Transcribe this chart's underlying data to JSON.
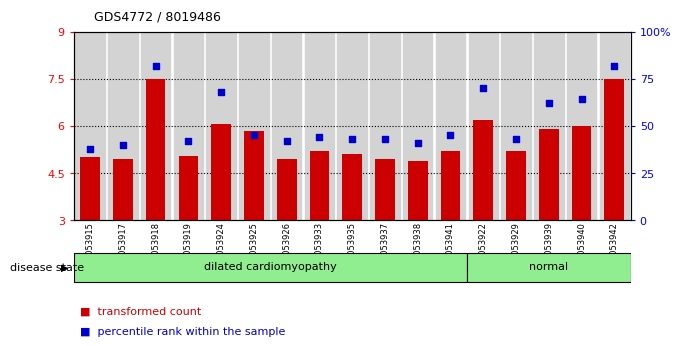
{
  "title": "GDS4772 / 8019486",
  "samples": [
    "GSM1053915",
    "GSM1053917",
    "GSM1053918",
    "GSM1053919",
    "GSM1053924",
    "GSM1053925",
    "GSM1053926",
    "GSM1053933",
    "GSM1053935",
    "GSM1053937",
    "GSM1053938",
    "GSM1053941",
    "GSM1053922",
    "GSM1053929",
    "GSM1053939",
    "GSM1053940",
    "GSM1053942"
  ],
  "transformed_count": [
    5.0,
    4.95,
    7.5,
    5.05,
    6.05,
    5.85,
    4.95,
    5.2,
    5.1,
    4.95,
    4.9,
    5.2,
    6.2,
    5.2,
    5.9,
    6.0,
    7.5
  ],
  "percentile_rank": [
    38,
    40,
    82,
    42,
    68,
    45,
    42,
    44,
    43,
    43,
    41,
    45,
    70,
    43,
    62,
    64,
    82
  ],
  "disease_groups": [
    {
      "label": "dilated cardiomyopathy",
      "start": 0,
      "end": 12
    },
    {
      "label": "normal",
      "start": 12,
      "end": 17
    }
  ],
  "bar_color": "#CC0000",
  "dot_color": "#0000CC",
  "ylim_left": [
    3,
    9
  ],
  "ylim_right": [
    0,
    100
  ],
  "yticks_left": [
    3,
    4.5,
    6,
    7.5,
    9
  ],
  "ytick_labels_left": [
    "3",
    "4.5",
    "6",
    "7.5",
    "9"
  ],
  "yticks_right": [
    0,
    25,
    50,
    75,
    100
  ],
  "ytick_labels_right": [
    "0",
    "25",
    "50",
    "75",
    "100%"
  ],
  "grid_values": [
    4.5,
    6.0,
    7.5
  ],
  "legend_items": [
    {
      "label": "transformed count",
      "color": "#CC0000"
    },
    {
      "label": "percentile rank within the sample",
      "color": "#0000CC"
    }
  ],
  "disease_state_label": "disease state",
  "bg_color_samples": "#D3D3D3",
  "bg_color_disease": "#90EE90"
}
